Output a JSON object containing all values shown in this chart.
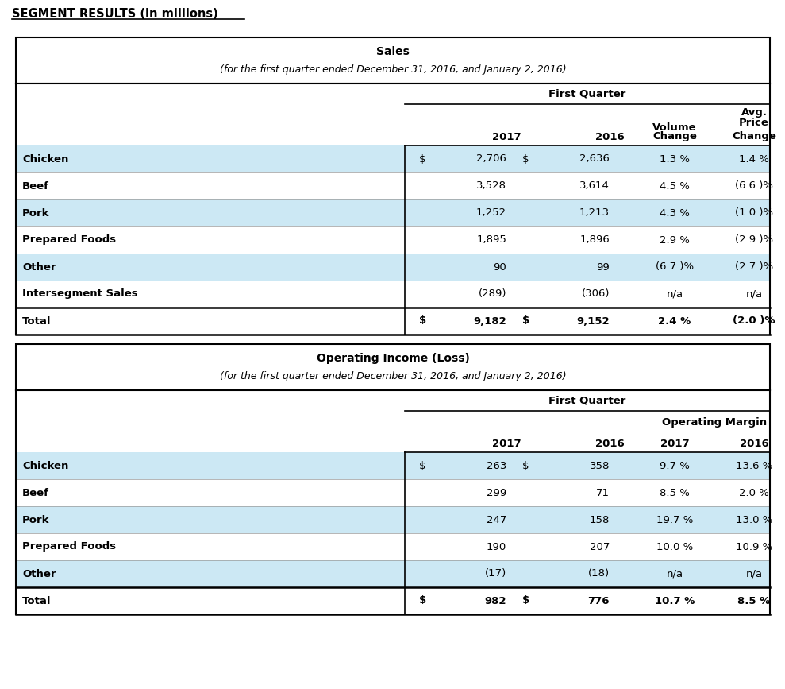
{
  "title": "SEGMENT RESULTS (in millions)",
  "bg_color": "#ffffff",
  "light_blue": "#cce8f4",
  "white": "#ffffff",
  "border_color": "#000000",
  "sales_header1": "Sales",
  "sales_header2": "(for the first quarter ended December 31, 2016, and January 2, 2016)",
  "income_header1": "Operating Income (Loss)",
  "income_header2": "(for the first quarter ended December 31, 2016, and January 2, 2016)",
  "sales_rows": [
    {
      "label": "Chicken",
      "dollar": "$",
      "v2017": "2,706",
      "dollar2": "$",
      "v2016": "2,636",
      "vol": "1.3 %",
      "price": "1.4 %",
      "blue": true,
      "total": false
    },
    {
      "label": "Beef",
      "dollar": "",
      "v2017": "3,528",
      "dollar2": "",
      "v2016": "3,614",
      "vol": "4.5 %",
      "price": "(6.6 )%",
      "blue": false,
      "total": false
    },
    {
      "label": "Pork",
      "dollar": "",
      "v2017": "1,252",
      "dollar2": "",
      "v2016": "1,213",
      "vol": "4.3 %",
      "price": "(1.0 )%",
      "blue": true,
      "total": false
    },
    {
      "label": "Prepared Foods",
      "dollar": "",
      "v2017": "1,895",
      "dollar2": "",
      "v2016": "1,896",
      "vol": "2.9 %",
      "price": "(2.9 )%",
      "blue": false,
      "total": false
    },
    {
      "label": "Other",
      "dollar": "",
      "v2017": "90",
      "dollar2": "",
      "v2016": "99",
      "vol": "(6.7 )%",
      "price": "(2.7 )%",
      "blue": true,
      "total": false
    },
    {
      "label": "Intersegment Sales",
      "dollar": "",
      "v2017": "(289)",
      "dollar2": "",
      "v2016": "(306)",
      "vol": "n/a",
      "price": "n/a",
      "blue": false,
      "total": false
    },
    {
      "label": "Total",
      "dollar": "$",
      "v2017": "9,182",
      "dollar2": "$",
      "v2016": "9,152",
      "vol": "2.4 %",
      "price": "(2.0 )%",
      "blue": false,
      "total": true
    }
  ],
  "income_rows": [
    {
      "label": "Chicken",
      "dollar": "$",
      "v2017": "263",
      "dollar2": "$",
      "v2016": "358",
      "m2017": "9.7 %",
      "m2016": "13.6 %",
      "blue": true,
      "total": false
    },
    {
      "label": "Beef",
      "dollar": "",
      "v2017": "299",
      "dollar2": "",
      "v2016": "71",
      "m2017": "8.5 %",
      "m2016": "2.0 %",
      "blue": false,
      "total": false
    },
    {
      "label": "Pork",
      "dollar": "",
      "v2017": "247",
      "dollar2": "",
      "v2016": "158",
      "m2017": "19.7 %",
      "m2016": "13.0 %",
      "blue": true,
      "total": false
    },
    {
      "label": "Prepared Foods",
      "dollar": "",
      "v2017": "190",
      "dollar2": "",
      "v2016": "207",
      "m2017": "10.0 %",
      "m2016": "10.9 %",
      "blue": false,
      "total": false
    },
    {
      "label": "Other",
      "dollar": "",
      "v2017": "(17)",
      "dollar2": "",
      "v2016": "(18)",
      "m2017": "n/a",
      "m2016": "n/a",
      "blue": true,
      "total": false
    },
    {
      "label": "Total",
      "dollar": "$",
      "v2017": "982",
      "dollar2": "$",
      "v2016": "776",
      "m2017": "10.7 %",
      "m2016": "8.5 %",
      "blue": false,
      "total": true
    }
  ]
}
